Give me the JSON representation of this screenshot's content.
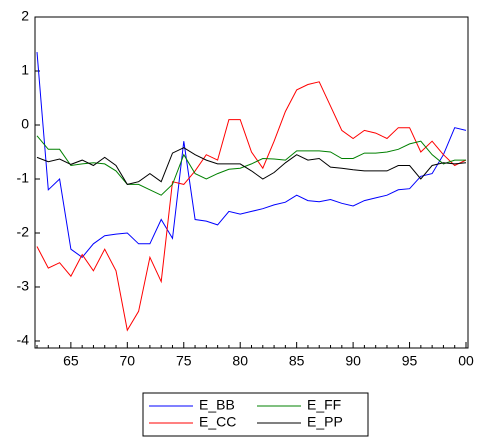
{
  "chart_data": {
    "type": "line",
    "categories": [
      null,
      null,
      null,
      "65",
      null,
      null,
      null,
      null,
      "70",
      null,
      null,
      null,
      null,
      "75",
      null,
      null,
      null,
      null,
      "80",
      null,
      null,
      null,
      null,
      "85",
      null,
      null,
      null,
      null,
      "90",
      null,
      null,
      null,
      null,
      "95",
      null,
      null,
      null,
      null,
      "00"
    ],
    "series": [
      {
        "name": "E_BB",
        "color": "#0000ff",
        "values": [
          1.35,
          -1.2,
          -1.0,
          -2.3,
          -2.45,
          -2.2,
          -2.05,
          -2.02,
          -2.0,
          -2.2,
          -2.2,
          -1.75,
          -2.1,
          -0.3,
          -1.75,
          -1.78,
          -1.85,
          -1.6,
          -1.65,
          -1.6,
          -1.55,
          -1.48,
          -1.43,
          -1.3,
          -1.4,
          -1.42,
          -1.38,
          -1.45,
          -1.5,
          -1.4,
          -1.35,
          -1.3,
          -1.2,
          -1.18,
          -0.95,
          -0.9,
          -0.55,
          -0.05,
          -0.1
        ]
      },
      {
        "name": "E_CC",
        "color": "#ff0000",
        "values": [
          -2.25,
          -2.65,
          -2.55,
          -2.8,
          -2.4,
          -2.7,
          -2.3,
          -2.7,
          -3.8,
          -3.45,
          -2.45,
          -2.9,
          -1.05,
          -1.1,
          -0.85,
          -0.55,
          -0.65,
          0.1,
          0.1,
          -0.5,
          -0.8,
          -0.3,
          0.25,
          0.65,
          0.75,
          0.8,
          0.35,
          -0.1,
          -0.25,
          -0.1,
          -0.15,
          -0.25,
          -0.05,
          -0.05,
          -0.5,
          -0.3,
          -0.55,
          -0.75,
          -0.65
        ]
      },
      {
        "name": "E_FF",
        "color": "#008000",
        "values": [
          -0.2,
          -0.45,
          -0.45,
          -0.75,
          -0.72,
          -0.7,
          -0.72,
          -0.85,
          -1.1,
          -1.1,
          -1.2,
          -1.3,
          -1.1,
          -0.55,
          -0.9,
          -1.0,
          -0.9,
          -0.82,
          -0.8,
          -0.72,
          -0.62,
          -0.63,
          -0.65,
          -0.48,
          -0.48,
          -0.48,
          -0.5,
          -0.62,
          -0.62,
          -0.52,
          -0.52,
          -0.5,
          -0.45,
          -0.35,
          -0.3,
          -0.55,
          -0.72,
          -0.65,
          -0.65
        ]
      },
      {
        "name": "E_PP",
        "color": "#000000",
        "values": [
          -0.6,
          -0.68,
          -0.63,
          -0.73,
          -0.65,
          -0.75,
          -0.6,
          -0.75,
          -1.1,
          -1.05,
          -0.9,
          -1.05,
          -0.52,
          -0.42,
          -0.55,
          -0.65,
          -0.72,
          -0.72,
          -0.72,
          -0.85,
          -1.0,
          -0.88,
          -0.7,
          -0.55,
          -0.65,
          -0.62,
          -0.78,
          -0.8,
          -0.83,
          -0.85,
          -0.85,
          -0.85,
          -0.75,
          -0.75,
          -1.0,
          -0.75,
          -0.7,
          -0.72,
          -0.7
        ]
      }
    ],
    "ylim": [
      -4.13,
      2
    ],
    "yticks": [
      -4,
      -3,
      -2,
      -1,
      0,
      1,
      2
    ],
    "grid": false
  }
}
